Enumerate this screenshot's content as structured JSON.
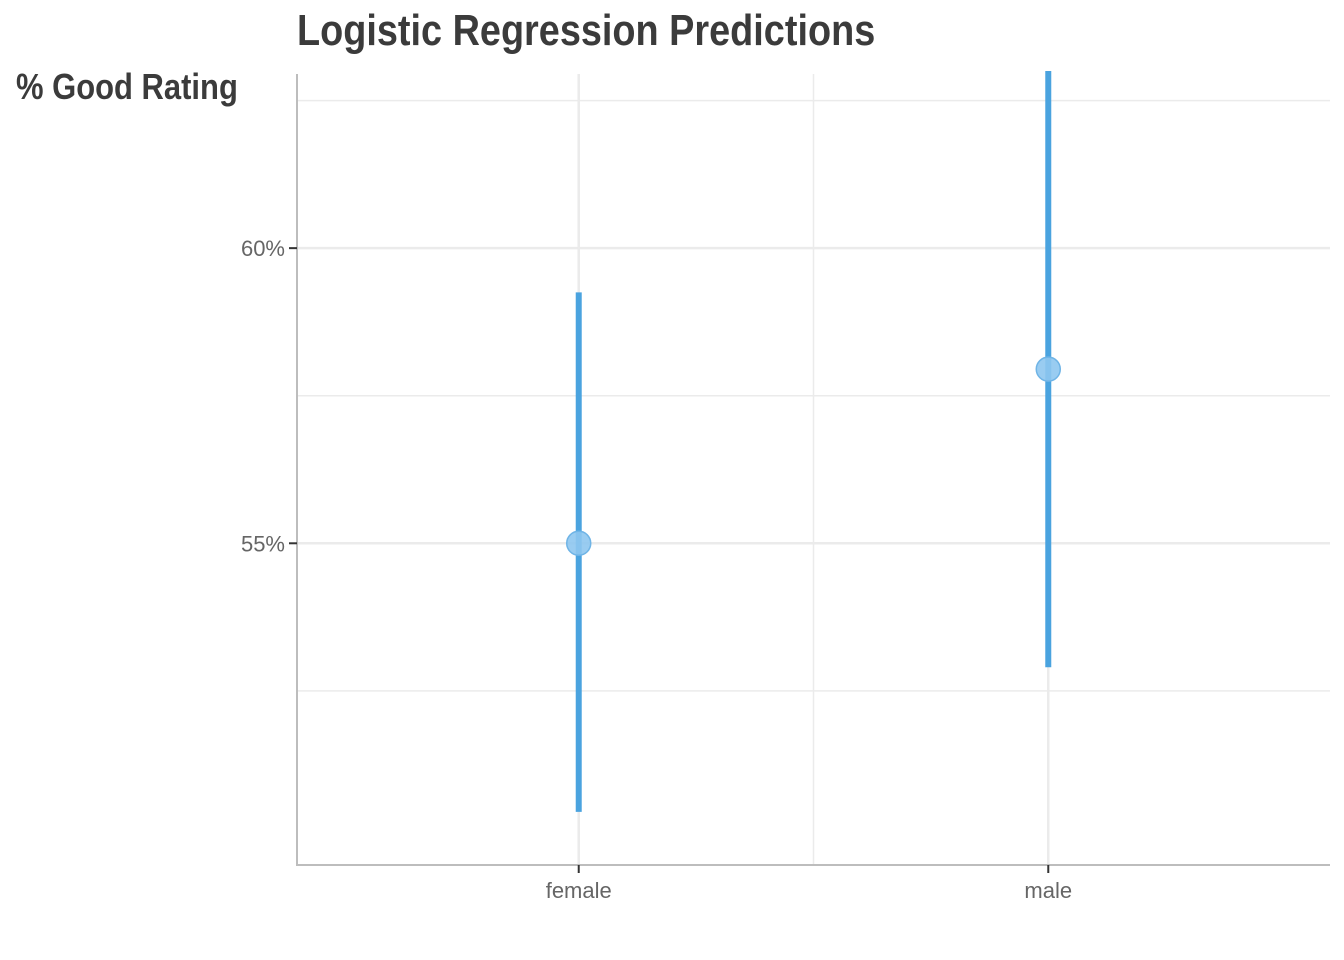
{
  "chart_data": {
    "type": "scatter",
    "title": "Logistic Regression Predictions",
    "ylabel": "% Good Rating",
    "xlabel": "",
    "categories": [
      "female",
      "male"
    ],
    "series": [
      {
        "values": [
          55.0,
          57.95
        ],
        "lower": [
          50.45,
          52.9
        ],
        "upper": [
          59.25,
          63.0
        ]
      }
    ],
    "ylim": [
      49.55,
      62.95
    ],
    "y_ticks": [
      55,
      60
    ],
    "y_tick_labels": [
      "55%",
      "60%"
    ],
    "y_minor_ticks": [
      52.5,
      57.5,
      62.5
    ],
    "grid": true,
    "legend": "none",
    "colors": {
      "interval": "#4aa3df",
      "point": "#8ec6ef",
      "point_stroke": "#6fb4e6",
      "grid": "#ebebeb",
      "axis": "#bdbdbd",
      "text": "#3b3b3b",
      "tick_text": "#666666"
    }
  }
}
